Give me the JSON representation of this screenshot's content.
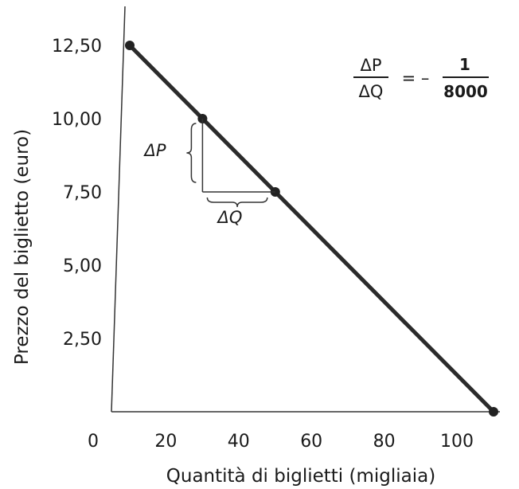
{
  "chart_data": {
    "type": "line",
    "xlabel": "Quantità di biglietti (migliaia)",
    "ylabel": "Prezzo del biglietto (euro)",
    "x_ticks": [
      "0",
      "20",
      "40",
      "60",
      "80",
      "100"
    ],
    "x_tick_values": [
      0,
      20,
      40,
      60,
      80,
      100
    ],
    "y_ticks": [
      "2,50",
      "5,00",
      "7,50",
      "10,00",
      "12,50"
    ],
    "y_tick_values": [
      2.5,
      5.0,
      7.5,
      10.0,
      12.5
    ],
    "xlim": [
      0,
      100
    ],
    "ylim": [
      0,
      12.5
    ],
    "grid": false,
    "series": [
      {
        "x": [
          0,
          100
        ],
        "y": [
          12.5,
          0
        ]
      }
    ],
    "points": [
      {
        "x": 0,
        "y": 12.5
      },
      {
        "x": 20,
        "y": 10.0
      },
      {
        "x": 40,
        "y": 7.5
      },
      {
        "x": 100,
        "y": 0
      }
    ],
    "annotations": {
      "delta_p": "ΔP",
      "delta_q": "ΔQ",
      "formula": {
        "numerator": "ΔP",
        "denominator": "ΔQ",
        "equals": "= –",
        "value_numerator": "1",
        "value_denominator": "8000"
      }
    }
  }
}
